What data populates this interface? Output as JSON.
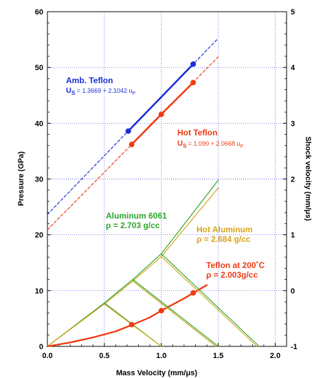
{
  "chart_data": {
    "type": "line",
    "xlabel": "Mass Velocity (mm/μs)",
    "ylabel": "Pressure (GPa)",
    "y2label": "Shock velocity (mm/μs)",
    "xlim": [
      0,
      2.1
    ],
    "ylim": [
      0,
      60
    ],
    "y2lim": [
      -1,
      5
    ],
    "xticks": [
      "0.0",
      "0.5",
      "1.0",
      "1.5",
      "2.0"
    ],
    "yticks": [
      "0",
      "10",
      "20",
      "30",
      "40",
      "50",
      "60"
    ],
    "y2ticks": [
      "-1",
      "0",
      "1",
      "2",
      "3",
      "4",
      "5"
    ],
    "grid": true,
    "colors": {
      "amb_teflon": "#1a2fd6",
      "hot_teflon": "#f03a12",
      "aluminum": "#2aa62a",
      "hot_aluminum": "#d9a21b"
    },
    "series": [
      {
        "key": "amb_teflon_fit",
        "axis": "y2",
        "style": "dashed",
        "x": [
          0.0,
          1.5
        ],
        "y": [
          1.3669,
          4.5232
        ]
      },
      {
        "key": "amb_teflon_data",
        "axis": "y2",
        "style": "solid",
        "x": [
          0.71,
          1.28
        ],
        "y": [
          2.86,
          4.06
        ],
        "markers": true
      },
      {
        "key": "hot_teflon_fit",
        "axis": "y2",
        "style": "dashed",
        "x": [
          0.0,
          1.5
        ],
        "y": [
          1.09,
          4.19
        ]
      },
      {
        "key": "hot_teflon_data",
        "axis": "y2",
        "style": "solid",
        "x": [
          0.74,
          1.0,
          1.28
        ],
        "y": [
          2.62,
          3.16,
          3.73
        ],
        "markers": true
      },
      {
        "key": "aluminum_hugoniot",
        "axis": "y",
        "style": "solid",
        "x": [
          0.0,
          0.5,
          0.75,
          1.0,
          1.5
        ],
        "y": [
          0.0,
          7.8,
          12.0,
          16.6,
          29.8
        ]
      },
      {
        "key": "hot_aluminum_hugoniot",
        "axis": "y",
        "style": "solid",
        "x": [
          0.0,
          0.5,
          0.75,
          1.0,
          1.5
        ],
        "y": [
          0.0,
          7.6,
          11.7,
          16.1,
          28.4
        ]
      },
      {
        "key": "teflon_200C_hugoniot",
        "axis": "y",
        "style": "solid",
        "x": [
          0.0,
          0.2,
          0.4,
          0.6,
          0.75,
          0.9,
          1.0,
          1.2,
          1.4
        ],
        "y": [
          0.0,
          0.7,
          1.6,
          2.7,
          3.9,
          5.2,
          6.4,
          8.6,
          11.0
        ]
      },
      {
        "key": "aluminum_release_1",
        "axis": "y",
        "style": "solid",
        "x": [
          0.5,
          1.0
        ],
        "y": [
          7.8,
          0.0
        ]
      },
      {
        "key": "aluminum_release_2",
        "axis": "y",
        "style": "solid",
        "x": [
          0.75,
          1.5
        ],
        "y": [
          12.0,
          0.0
        ]
      },
      {
        "key": "aluminum_release_3",
        "axis": "y",
        "style": "solid",
        "x": [
          1.0,
          1.86
        ],
        "y": [
          16.6,
          0.0
        ]
      },
      {
        "key": "hot_aluminum_release_1",
        "axis": "y",
        "style": "solid",
        "x": [
          0.5,
          1.0
        ],
        "y": [
          7.6,
          0.0
        ]
      },
      {
        "key": "hot_aluminum_release_2",
        "axis": "y",
        "style": "solid",
        "x": [
          0.75,
          1.48
        ],
        "y": [
          11.7,
          0.0
        ]
      },
      {
        "key": "hot_aluminum_release_3",
        "axis": "y",
        "style": "solid",
        "x": [
          1.0,
          1.84
        ],
        "y": [
          16.1,
          0.0
        ]
      }
    ],
    "intersections": {
      "x": [
        0.74,
        1.0,
        1.28
      ],
      "y": [
        3.9,
        6.4,
        9.6
      ]
    },
    "annotations": {
      "amb_teflon_title": "Amb. Teflon",
      "amb_teflon_eq": "U",
      "amb_teflon_eq_sub": "S",
      "amb_teflon_eq_rest": " = 1.3669 + 2.1042 u",
      "amb_teflon_eq_sub2": "P",
      "hot_teflon_title": "Hot Teflon",
      "hot_teflon_eq": "U",
      "hot_teflon_eq_sub": "S",
      "hot_teflon_eq_rest": " = 1.090 + 2.0668 u",
      "hot_teflon_eq_sub2": "P",
      "aluminum_title": "Aluminum 6061",
      "aluminum_density": "ρ = 2.703 g/cc",
      "hot_aluminum_title": "Hot Aluminum",
      "hot_aluminum_density": "ρ = 2.684 g/cc",
      "teflon200_title": "Teflon at 200˚C",
      "teflon200_density": "ρ = 2.003g/cc"
    }
  }
}
